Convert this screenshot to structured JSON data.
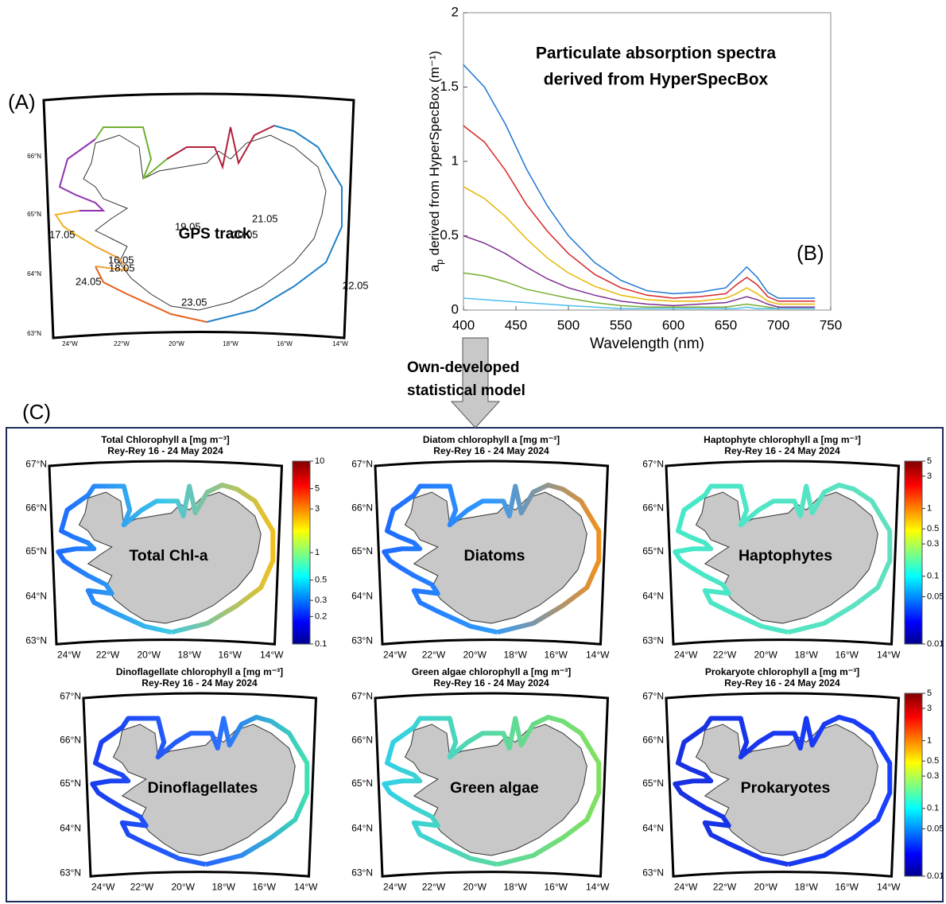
{
  "panel_labels": [
    "(A)",
    "(B)",
    "(C)"
  ],
  "gps_map": {
    "title": "GPS track",
    "dates": [
      "19.05",
      "20.05",
      "21.05",
      "18.05",
      "22.05",
      "17.05",
      "16.05",
      "24.05",
      "23.05"
    ],
    "lat_labels": [
      "66°N",
      "65°N",
      "64°N",
      "63°N"
    ],
    "lon_labels": [
      "24°W",
      "22°W",
      "20°W",
      "18°W",
      "16°W",
      "14°W"
    ]
  },
  "chart_data": {
    "type": "line",
    "title": [
      "Particulate absorption spectra",
      "derived from HyperSpecBox"
    ],
    "x_label": "Wavelength (nm)",
    "y_label": [
      "a",
      "p",
      " derived from HyperSpecBox (m⁻¹)"
    ],
    "x": [
      400,
      420,
      440,
      460,
      480,
      500,
      525,
      550,
      575,
      600,
      625,
      650,
      660,
      670,
      680,
      690,
      700,
      735
    ],
    "series": [
      {
        "color": "#1f77d4",
        "values": [
          1.65,
          1.5,
          1.25,
          0.95,
          0.7,
          0.5,
          0.32,
          0.2,
          0.13,
          0.11,
          0.12,
          0.15,
          0.22,
          0.29,
          0.22,
          0.12,
          0.08,
          0.08
        ]
      },
      {
        "color": "#d62728",
        "values": [
          1.24,
          1.13,
          0.94,
          0.71,
          0.53,
          0.38,
          0.24,
          0.15,
          0.1,
          0.08,
          0.09,
          0.11,
          0.17,
          0.22,
          0.17,
          0.09,
          0.06,
          0.06
        ]
      },
      {
        "color": "#e6b800",
        "values": [
          0.83,
          0.75,
          0.63,
          0.48,
          0.35,
          0.25,
          0.16,
          0.1,
          0.07,
          0.06,
          0.06,
          0.08,
          0.11,
          0.15,
          0.11,
          0.06,
          0.04,
          0.04
        ]
      },
      {
        "color": "#7e2f8e",
        "values": [
          0.5,
          0.45,
          0.38,
          0.29,
          0.21,
          0.15,
          0.1,
          0.06,
          0.04,
          0.03,
          0.04,
          0.05,
          0.07,
          0.09,
          0.07,
          0.04,
          0.02,
          0.02
        ]
      },
      {
        "color": "#77ac30",
        "values": [
          0.25,
          0.23,
          0.19,
          0.14,
          0.11,
          0.08,
          0.05,
          0.03,
          0.02,
          0.02,
          0.02,
          0.02,
          0.03,
          0.04,
          0.03,
          0.02,
          0.01,
          0.01
        ]
      },
      {
        "color": "#4dbeee",
        "values": [
          0.08,
          0.07,
          0.06,
          0.05,
          0.04,
          0.03,
          0.02,
          0.01,
          0.01,
          0.01,
          0.01,
          0.01,
          0.01,
          0.02,
          0.01,
          0.01,
          0.01,
          0.01
        ]
      }
    ],
    "xlim": [
      400,
      750
    ],
    "xticks": [
      400,
      450,
      500,
      550,
      600,
      650,
      700,
      750
    ],
    "ylim": [
      0,
      2
    ],
    "yticks": [
      0,
      0.5,
      1,
      1.5,
      2
    ]
  },
  "arrow_text": [
    "Own-developed",
    "statistical model"
  ],
  "map_axes": {
    "lat_labels": [
      "67°N",
      "66°N",
      "65°N",
      "64°N",
      "63°N"
    ],
    "lon_labels": [
      "24°W",
      "22°W",
      "20°W",
      "18°W",
      "16°W",
      "14°W"
    ]
  },
  "maps": [
    {
      "title": "Total Chlorophyll a [mg m⁻³]",
      "subtitle": "Rey-Rey 16 - 24 May 2024",
      "label": "Total Chl-a",
      "colorbar": {
        "ticks": [
          10,
          5,
          3,
          1,
          0.5,
          0.3,
          0.2,
          0.1
        ],
        "lim": [
          0.1,
          10
        ]
      }
    },
    {
      "title": "Diatom chlorophyll a [mg m⁻³]",
      "subtitle": "Rey-Rey 16 - 24 May 2024",
      "label": "Diatoms"
    },
    {
      "title": "Haptophyte chlorophyll a [mg m⁻³]",
      "subtitle": "Rey-Rey 16 - 24 May 2024",
      "label": "Haptophytes",
      "colorbar": {
        "ticks": [
          5,
          3,
          1,
          0.5,
          0.3,
          0.1,
          0.05,
          0.01
        ],
        "lim": [
          0.01,
          5
        ]
      }
    },
    {
      "title": "Dinoflagellate chlorophyll a [mg m⁻³]",
      "subtitle": "Rey-Rey 16 - 24 May 2024",
      "label": "Dinoflagellates"
    },
    {
      "title": "Green algae chlorophyll a [mg m⁻³]",
      "subtitle": "Rey-Rey 16 - 24 May 2024",
      "label": "Green algae"
    },
    {
      "title": "Prokaryote chlorophyll a [mg m⁻³]",
      "subtitle": "Rey-Rey 16 - 24 May 2024",
      "label": "Prokaryotes",
      "colorbar": {
        "ticks": [
          5,
          3,
          1,
          0.5,
          0.3,
          0.1,
          0.05,
          0.01
        ],
        "lim": [
          0.01,
          5
        ]
      }
    }
  ]
}
